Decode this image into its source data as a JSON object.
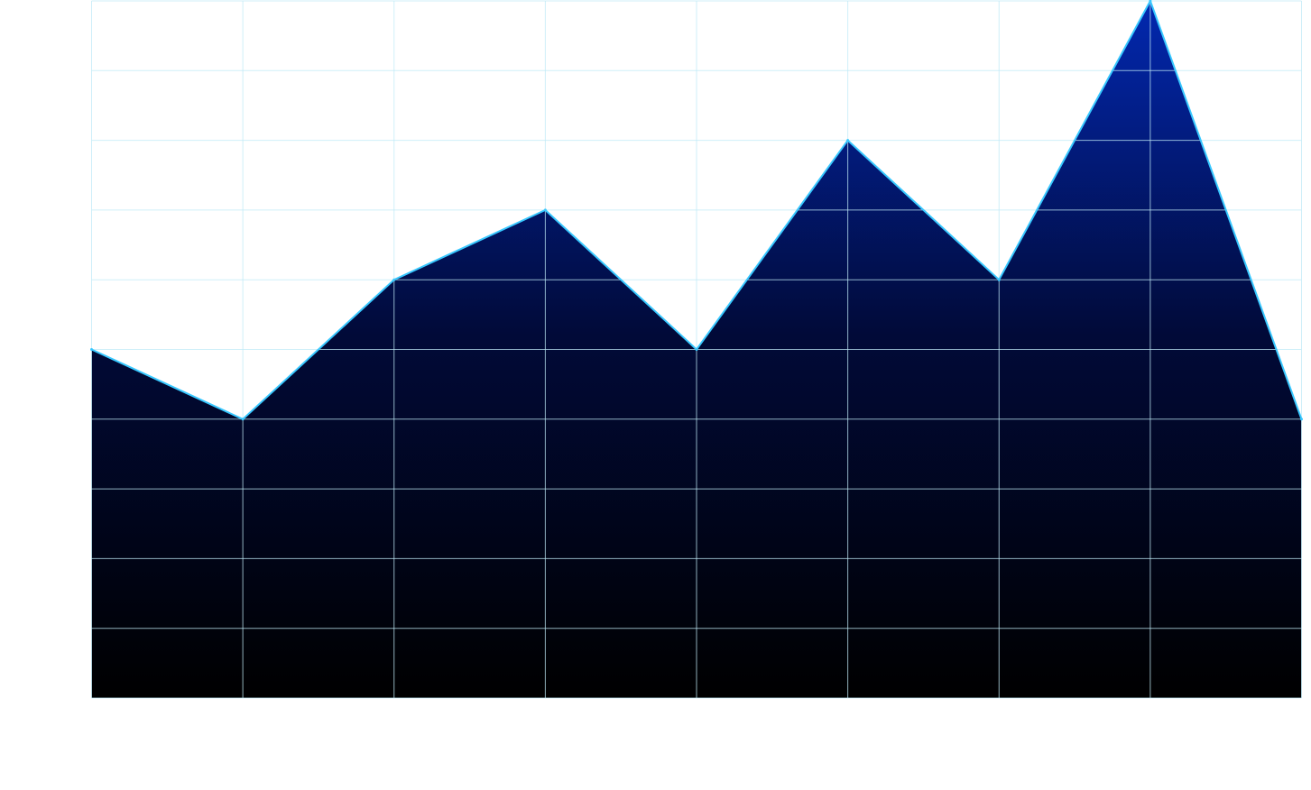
{
  "chart_data": {
    "type": "area",
    "x": [
      0,
      1,
      2,
      3,
      4,
      5,
      6,
      7,
      8
    ],
    "values": [
      5,
      4,
      6,
      7,
      5,
      8,
      6,
      10,
      4
    ],
    "ylim": [
      0,
      10
    ],
    "xlim": [
      0,
      8
    ],
    "grid": true,
    "title": "",
    "xlabel": "",
    "ylabel": "",
    "colors": {
      "line": "#38c8ff",
      "fill_top": "#0228b0",
      "fill_mid": "#010a38",
      "fill_bottom": "#000000",
      "grid": "#bfe9f7"
    }
  }
}
